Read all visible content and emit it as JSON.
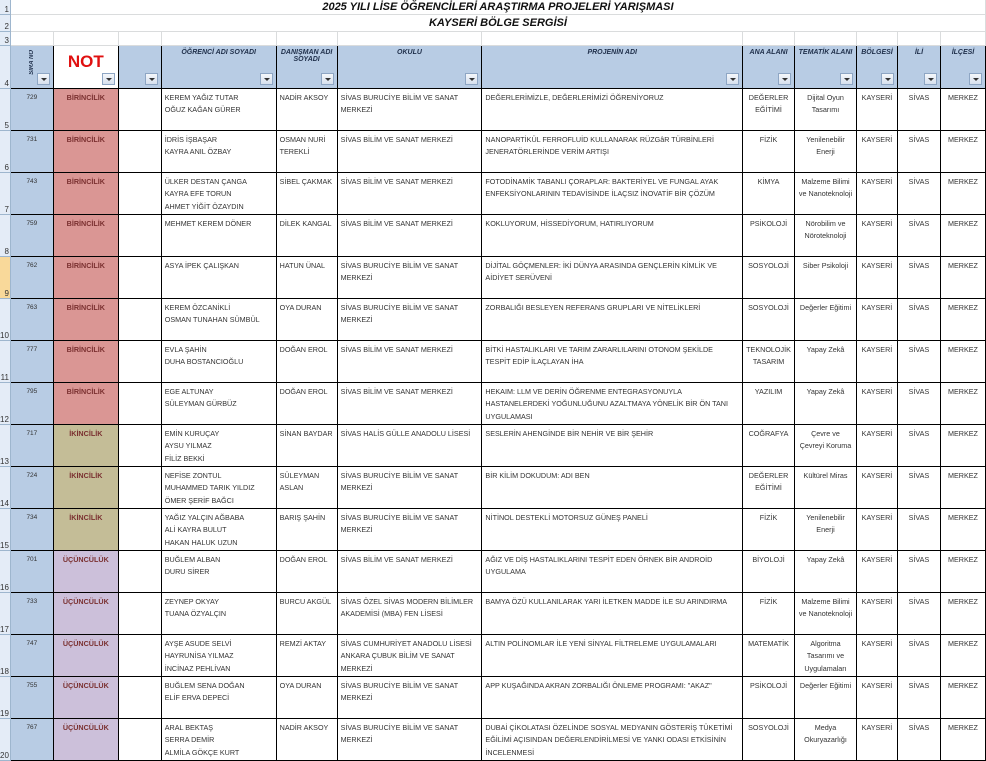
{
  "title_line1": "2025 YILI LİSE ÖĞRENCİLERİ ARAŞTIRMA PROJELERİ YARIŞMASI",
  "title_line2": "KAYSERİ BÖLGE SERGİSİ",
  "selected_row": 9,
  "headers": {
    "sira_no": "SIRA NO",
    "not": "NOT",
    "ogrenci": "ÖĞRENCİ ADI SOYADI",
    "danisman": "DANIŞMAN ADI SOYADI",
    "okul": "OKULU",
    "proje": "PROJENİN ADI",
    "ana_alan": "ANA ALANI",
    "tematik": "TEMATİK ALANI",
    "bolge": "BÖLGESİ",
    "il": "İLİ",
    "ilce": "İLÇESİ"
  },
  "colors": {
    "birincilik": "#da9694",
    "ikincilik": "#c4bd97",
    "ucunculuk": "#ccc0da",
    "header": "#b8cce4"
  },
  "rows": [
    {
      "row": 5,
      "sira": "729",
      "not": "BİRİNCİLİK",
      "level": 1,
      "ogrenci": "KEREM YAĞIZ TUTAR\nOĞUZ KAĞAN GÜRER",
      "danisman": "NADİR AKSOY",
      "okul": "SİVAS BURUCİYE BİLİM VE SANAT MERKEZİ",
      "proje": "DEĞERLERİMİZLE, DEĞERLERİMİZİ ÖĞRENİYORUZ",
      "ana_alan": "DEĞERLER EĞİTİMİ",
      "tematik": "Dijital Oyun Tasarımı",
      "bolge": "KAYSERİ",
      "il": "SİVAS",
      "ilce": "MERKEZ"
    },
    {
      "row": 6,
      "sira": "731",
      "not": "BİRİNCİLİK",
      "level": 1,
      "ogrenci": "İDRİS İŞBAŞAR\nKAYRA ANIL ÖZBAY",
      "danisman": "OSMAN NURİ TEREKLİ",
      "okul": "SİVAS BİLİM VE SANAT MERKEZİ",
      "proje": "NANOPARTİKÜL FERROFLUİD KULLANARAK RÜZGâR TÜRBİNLERİ JENERATÖRLERİNDE VERİM ARTIŞI",
      "ana_alan": "FİZİK",
      "tematik": "Yenilenebilir Enerji",
      "bolge": "KAYSERİ",
      "il": "SİVAS",
      "ilce": "MERKEZ"
    },
    {
      "row": 7,
      "sira": "743",
      "not": "BİRİNCİLİK",
      "level": 1,
      "ogrenci": "ÜLKER DESTAN ÇANGA\nKAYRA EFE TORUN\nAHMET YİĞİT ÖZAYDIN",
      "danisman": "SİBEL ÇAKMAK",
      "okul": "SİVAS BİLİM VE SANAT MERKEZİ",
      "proje": "FOTODİNAMİK TABANLI ÇORAPLAR: BAKTERİYEL VE FUNGAL AYAK ENFEKSİYONLARININ TEDAVİSİNDE İLAÇSIZ İNOVATİF BİR ÇÖZÜM",
      "ana_alan": "KİMYA",
      "tematik": "Malzeme Bilimi ve Nanoteknoloji",
      "bolge": "KAYSERİ",
      "il": "SİVAS",
      "ilce": "MERKEZ"
    },
    {
      "row": 8,
      "sira": "759",
      "not": "BİRİNCİLİK",
      "level": 1,
      "ogrenci": "MEHMET KEREM DÖNER",
      "danisman": "DİLEK KANGAL",
      "okul": "SİVAS BİLİM VE SANAT MERKEZİ",
      "proje": "KOKLUYORUM, HİSSEDİYORUM, HATIRLIYORUM",
      "ana_alan": "PSİKOLOJİ",
      "tematik": "Nörobilim ve Nöroteknoloji",
      "bolge": "KAYSERİ",
      "il": "SİVAS",
      "ilce": "MERKEZ"
    },
    {
      "row": 9,
      "sira": "762",
      "not": "BİRİNCİLİK",
      "level": 1,
      "ogrenci": "ASYA İPEK ÇALIŞKAN",
      "danisman": "HATUN ÜNAL",
      "okul": "SİVAS BURUCİYE BİLİM VE SANAT MERKEZİ",
      "proje": "DİJİTAL GÖÇMENLER: İKİ DÜNYA ARASINDA GENÇLERİN KİMLİK VE AİDİYET SERÜVENİ",
      "ana_alan": "SOSYOLOJİ",
      "tematik": "Siber Psikoloji",
      "bolge": "KAYSERİ",
      "il": "SİVAS",
      "ilce": "MERKEZ"
    },
    {
      "row": 10,
      "sira": "763",
      "not": "BİRİNCİLİK",
      "level": 1,
      "ogrenci": "KEREM ÖZCANİKLİ\nOSMAN TUNAHAN SÜMBÜL",
      "danisman": "OYA DURAN",
      "okul": "SİVAS BURUCİYE BİLİM VE SANAT MERKEZİ",
      "proje": "ZORBALIĞI BESLEYEN REFERANS GRUPLARI VE NİTELİKLERİ",
      "ana_alan": "SOSYOLOJİ",
      "tematik": "Değerler Eğitimi",
      "bolge": "KAYSERİ",
      "il": "SİVAS",
      "ilce": "MERKEZ"
    },
    {
      "row": 11,
      "sira": "777",
      "not": "BİRİNCİLİK",
      "level": 1,
      "ogrenci": "EVLA ŞAHİN\nDUHA BOSTANCIOĞLU",
      "danisman": "DOĞAN EROL",
      "okul": "SİVAS BİLİM VE SANAT MERKEZİ",
      "proje": "BİTKİ HASTALIKLARI VE TARIM ZARARLILARINI OTONOM ŞEKİLDE TESPİT EDİP İLAÇLAYAN İHA",
      "ana_alan": "TEKNOLOJİK TASARIM",
      "tematik": "Yapay Zekâ",
      "bolge": "KAYSERİ",
      "il": "SİVAS",
      "ilce": "MERKEZ"
    },
    {
      "row": 12,
      "sira": "795",
      "not": "BİRİNCİLİK",
      "level": 1,
      "ogrenci": "EGE ALTUNAY\nSÜLEYMAN GÜRBÜZ",
      "danisman": "DOĞAN EROL",
      "okul": "SİVAS BİLİM VE SANAT MERKEZİ",
      "proje": "HEKAIM: LLM VE DERİN ÖĞRENME ENTEGRASYONUYLA HASTANELERDEKİ YOĞUNLUĞUNU AZALTMAYA YÖNELİK BİR ÖN TANI UYGULAMASI",
      "ana_alan": "YAZILIM",
      "tematik": "Yapay Zekâ",
      "bolge": "KAYSERİ",
      "il": "SİVAS",
      "ilce": "MERKEZ"
    },
    {
      "row": 13,
      "sira": "717",
      "not": "İKİNCİLİK",
      "level": 2,
      "ogrenci": "EMİN KURUÇAY\nAYSU YILMAZ\nFİLİZ BEKKİ",
      "danisman": "SİNAN BAYDAR",
      "okul": "SİVAS HALİS GÜLLE ANADOLU LİSESİ",
      "proje": "SESLERİN AHENGİNDE BİR NEHİR VE BİR ŞEHİR",
      "ana_alan": "COĞRAFYA",
      "tematik": "Çevre ve Çevreyi Koruma",
      "bolge": "KAYSERİ",
      "il": "SİVAS",
      "ilce": "MERKEZ"
    },
    {
      "row": 14,
      "sira": "724",
      "not": "İKİNCİLİK",
      "level": 2,
      "ogrenci": "NEFİSE ZONTUL\nMUHAMMED TARIK YILDIZ\nÖMER ŞERİF BAĞCI",
      "danisman": "SÜLEYMAN ASLAN",
      "okul": "SİVAS BURUCİYE BİLİM VE SANAT MERKEZİ",
      "proje": "BİR KİLİM DOKUDUM: ADI BEN",
      "ana_alan": "DEĞERLER EĞİTİMİ",
      "tematik": "Kültürel Miras",
      "bolge": "KAYSERİ",
      "il": "SİVAS",
      "ilce": "MERKEZ"
    },
    {
      "row": 15,
      "sira": "734",
      "not": "İKİNCİLİK",
      "level": 2,
      "ogrenci": "YAĞIZ YALÇIN AĞBABA\nALİ KAYRA BULUT\nHAKAN HALUK UZUN",
      "danisman": "BARIŞ ŞAHİN",
      "okul": "SİVAS BURUCİYE BİLİM VE SANAT MERKEZİ",
      "proje": "NİTİNOL DESTEKLİ MOTORSUZ GÜNEŞ PANELİ",
      "ana_alan": "FİZİK",
      "tematik": "Yenilenebilir Enerji",
      "bolge": "KAYSERİ",
      "il": "SİVAS",
      "ilce": "MERKEZ"
    },
    {
      "row": 16,
      "sira": "701",
      "not": "ÜÇÜNCÜLÜK",
      "level": 3,
      "ogrenci": "BUĞLEM ALBAN\nDURU SİRER",
      "danisman": "DOĞAN EROL",
      "okul": "SİVAS BİLİM VE SANAT MERKEZİ",
      "proje": "AĞIZ VE DİŞ HASTALIKLARINI TESPİT EDEN ÖRNEK BİR ANDROİD UYGULAMA",
      "ana_alan": "BİYOLOJİ",
      "tematik": "Yapay Zekâ",
      "bolge": "KAYSERİ",
      "il": "SİVAS",
      "ilce": "MERKEZ"
    },
    {
      "row": 17,
      "sira": "733",
      "not": "ÜÇÜNCÜLÜK",
      "level": 3,
      "ogrenci": "ZEYNEP OKYAY\nTUANA ÖZYALÇIN",
      "danisman": "BURCU AKGÜL",
      "okul": "SİVAS ÖZEL SİVAS MODERN BİLİMLER AKADEMİSİ (MBA) FEN LİSESİ",
      "proje": "BAMYA ÖZÜ KULLANILARAK YARI İLETKEN MADDE İLE SU ARINDIRMA",
      "ana_alan": "FİZİK",
      "tematik": "Malzeme Bilimi ve Nanoteknoloji",
      "bolge": "KAYSERİ",
      "il": "SİVAS",
      "ilce": "MERKEZ"
    },
    {
      "row": 18,
      "sira": "747",
      "not": "ÜÇÜNCÜLÜK",
      "level": 3,
      "ogrenci": "AYŞE ASUDE SELVİ\nHAYRUNİSA YILMAZ\nİNCİNAZ PEHLİVAN",
      "danisman": "REMZİ AKTAY",
      "okul": "SİVAS CUMHURİYET ANADOLU LİSESİ\nANKARA ÇUBUK BİLİM VE SANAT MERKEZİ",
      "proje": "ALTIN POLİNOMLAR İLE YENİ SİNYAL FİLTRELEME UYGULAMALARI",
      "ana_alan": "MATEMATİK",
      "tematik": "Algoritma Tasarımı ve Uygulamaları",
      "bolge": "KAYSERİ",
      "il": "SİVAS",
      "ilce": "MERKEZ"
    },
    {
      "row": 19,
      "sira": "755",
      "not": "ÜÇÜNCÜLÜK",
      "level": 3,
      "ogrenci": "BUĞLEM SENA DOĞAN\nELİF ERVA DEPECİ",
      "danisman": "OYA DURAN",
      "okul": "SİVAS BURUCİYE BİLİM VE SANAT MERKEZİ",
      "proje": "APP KUŞAĞINDA AKRAN ZORBALIĞI ÖNLEME PROGRAMI: \"AKAZ\"",
      "ana_alan": "PSİKOLOJİ",
      "tematik": "Değerler Eğitimi",
      "bolge": "KAYSERİ",
      "il": "SİVAS",
      "ilce": "MERKEZ"
    },
    {
      "row": 20,
      "sira": "767",
      "not": "ÜÇÜNCÜLÜK",
      "level": 3,
      "ogrenci": "ARAL BEKTAŞ\nSERRA DEMİR\nALMİLA GÖKÇE KURT",
      "danisman": "NADİR AKSOY",
      "okul": "SİVAS BURUCİYE BİLİM VE SANAT MERKEZİ",
      "proje": "DUBAİ ÇİKOLATASI ÖZELİNDE SOSYAL MEDYANIN GÖSTERİŞ TÜKETİMİ EĞİLİMİ AÇISINDAN DEĞERLENDİRİLMESİ VE YANKI ODASI ETKİSİNİN İNCELENMESİ",
      "ana_alan": "SOSYOLOJİ",
      "tematik": "Medya Okuryazarlığı",
      "bolge": "KAYSERİ",
      "il": "SİVAS",
      "ilce": "MERKEZ"
    }
  ]
}
